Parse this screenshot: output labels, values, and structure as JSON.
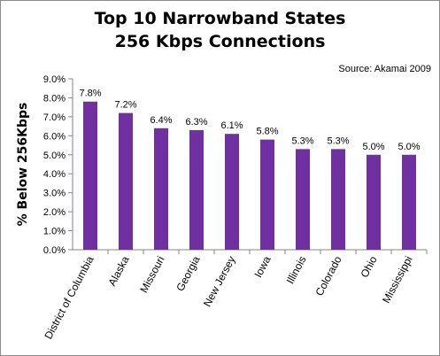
{
  "chart_data": {
    "type": "bar",
    "title_line1": "Top 10 Narrowband States",
    "title_line2": "256 Kbps Connections",
    "source": "Source: Akamai 2009",
    "ylabel": "% Below 256Kbps",
    "xlabel": "",
    "ylim": [
      0,
      9
    ],
    "ytick_labels": [
      "0.0%",
      "1.0%",
      "2.0%",
      "3.0%",
      "4.0%",
      "5.0%",
      "6.0%",
      "7.0%",
      "8.0%",
      "9.0%"
    ],
    "categories": [
      "District of Columbia",
      "Alaska",
      "Missouri",
      "Georgia",
      "New Jersey",
      "Iowa",
      "Illinois",
      "Colorado",
      "Ohio",
      "Mississippi"
    ],
    "values": [
      7.8,
      7.2,
      6.4,
      6.3,
      6.1,
      5.8,
      5.3,
      5.3,
      5.0,
      5.0
    ],
    "data_labels": [
      "7.8%",
      "7.2%",
      "6.4%",
      "6.3%",
      "6.1%",
      "5.8%",
      "5.3%",
      "5.3%",
      "5.0%",
      "5.0%"
    ],
    "bar_color": "#7030a0",
    "grid": false,
    "legend": "none"
  }
}
